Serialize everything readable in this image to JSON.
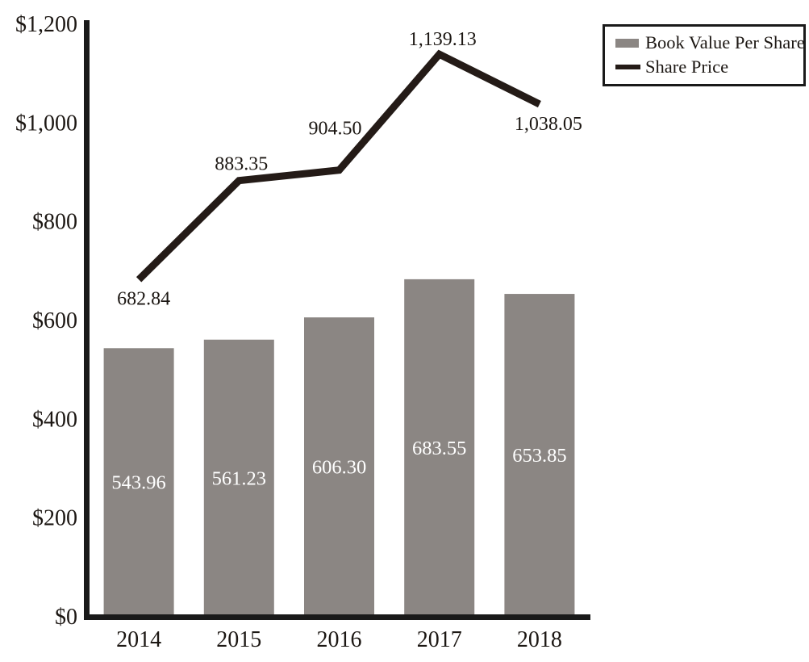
{
  "chart_data": {
    "type": "combo-bar-line",
    "title": "",
    "categories": [
      "2014",
      "2015",
      "2016",
      "2017",
      "2018"
    ],
    "series": [
      {
        "name": "Book Value Per Share",
        "type": "bar",
        "values": [
          543.96,
          561.23,
          606.3,
          683.55,
          653.85
        ],
        "labels": [
          "543.96",
          "561.23",
          "606.30",
          "683.55",
          "653.85"
        ],
        "color": "#8b8683",
        "label_color": "#ffffff"
      },
      {
        "name": "Share Price",
        "type": "line",
        "values": [
          682.84,
          883.35,
          904.5,
          1139.13,
          1038.05
        ],
        "labels": [
          "682.84",
          "883.35",
          "904.50",
          "1,139.13",
          "1,038.05"
        ],
        "color": "#241b17",
        "label_color": "#1c1713",
        "label_offsets": [
          [
            6,
            23
          ],
          [
            3,
            -21
          ],
          [
            -5,
            -52
          ],
          [
            4,
            -19
          ],
          [
            11,
            24
          ]
        ]
      }
    ],
    "y_axis": {
      "min": 0,
      "max": 1200,
      "step": 200,
      "tick_labels": [
        "$0",
        "$200",
        "$400",
        "$600",
        "$800",
        "$1,000",
        "$1,200"
      ]
    },
    "x_axis": {
      "tick_labels": [
        "2014",
        "2015",
        "2016",
        "2017",
        "2018"
      ]
    },
    "grid": false,
    "legend": {
      "position": "top-right",
      "border_color": "#1a1a1a",
      "items": [
        {
          "label": "Book Value Per Share",
          "swatch": "bar",
          "color": "#8b8683"
        },
        {
          "label": "Share Price",
          "swatch": "line",
          "color": "#241b17"
        }
      ]
    },
    "axis_color": "#1a1a1a"
  }
}
